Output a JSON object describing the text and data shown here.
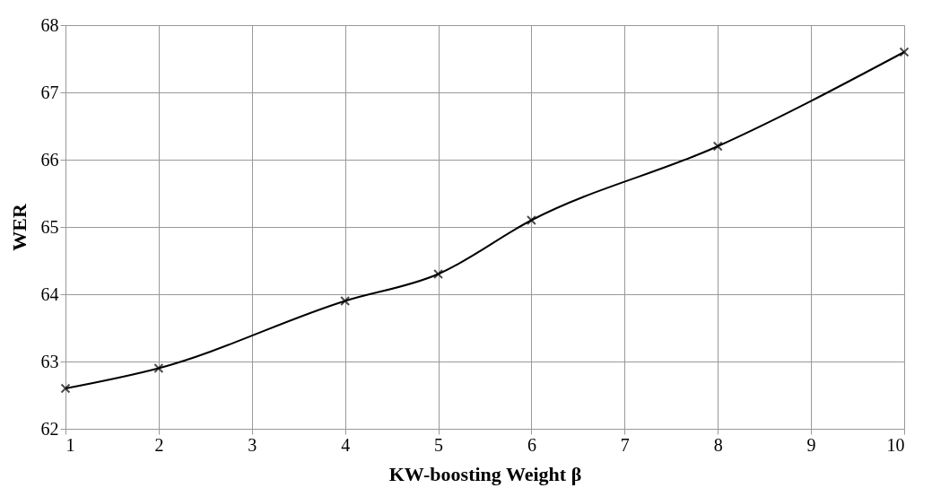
{
  "chart_data": {
    "type": "line",
    "xlabel": "KW-boosting Weight β",
    "ylabel": "WER",
    "x": [
      1,
      2,
      4,
      5,
      6,
      8,
      10
    ],
    "series": [
      {
        "color": "#000000",
        "values": [
          62.6,
          62.9,
          63.9,
          64.3,
          65.1,
          66.2,
          67.6
        ]
      }
    ],
    "xlim": [
      1,
      10
    ],
    "xticks": [
      1,
      2,
      3,
      4,
      5,
      6,
      7,
      8,
      9,
      10
    ],
    "ylim": [
      62,
      68
    ],
    "yticks": [
      62,
      63,
      64,
      65,
      66,
      67,
      68
    ],
    "grid": true,
    "marker": "cross",
    "line_style": "solid"
  }
}
